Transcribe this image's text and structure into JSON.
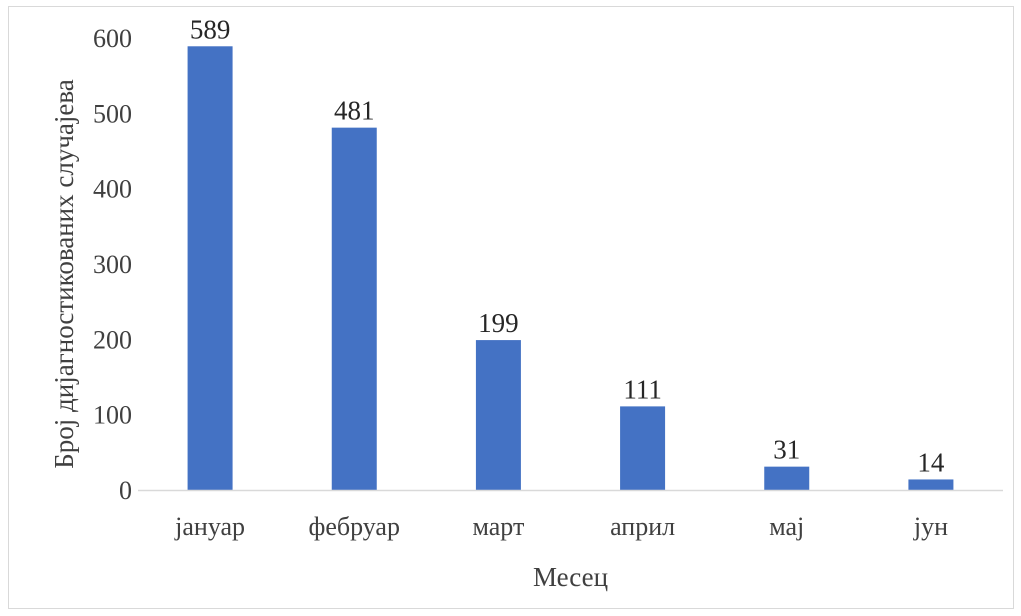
{
  "chart_data": {
    "type": "bar",
    "categories": [
      "јануар",
      "фебруар",
      "март",
      "април",
      "мај",
      "јун"
    ],
    "values": [
      589,
      481,
      199,
      111,
      31,
      14
    ],
    "data_labels": [
      "589",
      "481",
      "199",
      "111",
      "31",
      "14"
    ],
    "title": "",
    "xlabel": "Месец",
    "ylabel": "Број дијагностикованих случајева",
    "ylim": [
      0,
      600
    ],
    "yticks": [
      "0",
      "100",
      "200",
      "300",
      "400",
      "500",
      "600"
    ],
    "grid": false,
    "legend": "none",
    "bar_color": "#4472c4",
    "axis_color": "#d9d9d9"
  }
}
